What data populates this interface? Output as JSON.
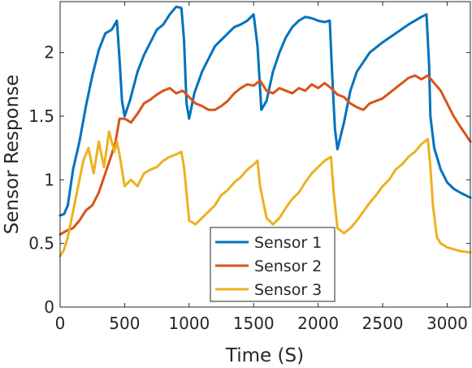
{
  "chart_data": {
    "type": "line",
    "xlabel": "Time (S)",
    "ylabel": "Sensor Response",
    "xlim": [
      0,
      3180
    ],
    "ylim": [
      0,
      2.4
    ],
    "x_ticks": [
      0,
      500,
      1000,
      1500,
      2000,
      2500,
      3000
    ],
    "y_ticks": [
      0,
      0.5,
      1,
      1.5,
      2
    ],
    "x_tick_labels": [
      "0",
      "500",
      "1000",
      "1500",
      "2000",
      "2500",
      "3000"
    ],
    "y_tick_labels": [
      "0",
      "0.5",
      "1",
      "1.5",
      "2"
    ],
    "grid": false,
    "legend_position": "bottom-center",
    "series": [
      {
        "name": "Sensor 1",
        "color": "#0072BD",
        "x": [
          0,
          30,
          60,
          100,
          150,
          200,
          250,
          300,
          350,
          400,
          440,
          460,
          480,
          500,
          540,
          600,
          650,
          700,
          750,
          800,
          850,
          900,
          940,
          960,
          980,
          1000,
          1040,
          1100,
          1150,
          1200,
          1250,
          1300,
          1350,
          1400,
          1450,
          1500,
          1530,
          1560,
          1600,
          1650,
          1700,
          1750,
          1800,
          1850,
          1900,
          1950,
          2000,
          2050,
          2090,
          2110,
          2130,
          2150,
          2200,
          2250,
          2300,
          2400,
          2500,
          2600,
          2700,
          2800,
          2840,
          2860,
          2870,
          2900,
          2950,
          3000,
          3050,
          3100,
          3180
        ],
        "y": [
          0.72,
          0.73,
          0.8,
          1.08,
          1.3,
          1.58,
          1.82,
          2.02,
          2.15,
          2.18,
          2.25,
          1.95,
          1.62,
          1.5,
          1.62,
          1.85,
          1.98,
          2.08,
          2.18,
          2.22,
          2.3,
          2.36,
          2.35,
          2.1,
          1.6,
          1.48,
          1.68,
          1.85,
          1.95,
          2.05,
          2.1,
          2.15,
          2.2,
          2.22,
          2.25,
          2.3,
          2.05,
          1.55,
          1.62,
          1.85,
          2.0,
          2.12,
          2.2,
          2.25,
          2.28,
          2.27,
          2.25,
          2.24,
          2.25,
          1.8,
          1.4,
          1.24,
          1.45,
          1.7,
          1.85,
          2.0,
          2.08,
          2.15,
          2.22,
          2.28,
          2.3,
          1.9,
          1.5,
          1.25,
          1.08,
          0.98,
          0.93,
          0.9,
          0.86
        ]
      },
      {
        "name": "Sensor 2",
        "color": "#D95319",
        "x": [
          0,
          50,
          100,
          150,
          200,
          250,
          300,
          350,
          400,
          430,
          460,
          500,
          550,
          600,
          650,
          700,
          750,
          800,
          850,
          900,
          950,
          1000,
          1050,
          1100,
          1150,
          1200,
          1250,
          1300,
          1350,
          1400,
          1450,
          1500,
          1550,
          1600,
          1650,
          1700,
          1750,
          1800,
          1850,
          1900,
          1950,
          2000,
          2050,
          2100,
          2150,
          2200,
          2250,
          2300,
          2350,
          2400,
          2450,
          2500,
          2550,
          2600,
          2650,
          2700,
          2750,
          2800,
          2850,
          2900,
          2950,
          3000,
          3050,
          3100,
          3180
        ],
        "y": [
          0.57,
          0.6,
          0.62,
          0.68,
          0.76,
          0.8,
          0.9,
          1.05,
          1.2,
          1.3,
          1.48,
          1.48,
          1.45,
          1.52,
          1.6,
          1.63,
          1.67,
          1.7,
          1.72,
          1.68,
          1.7,
          1.65,
          1.6,
          1.58,
          1.55,
          1.55,
          1.58,
          1.62,
          1.68,
          1.72,
          1.75,
          1.74,
          1.78,
          1.7,
          1.68,
          1.72,
          1.7,
          1.68,
          1.72,
          1.7,
          1.75,
          1.72,
          1.76,
          1.72,
          1.67,
          1.65,
          1.6,
          1.57,
          1.55,
          1.6,
          1.62,
          1.64,
          1.68,
          1.72,
          1.76,
          1.8,
          1.82,
          1.79,
          1.82,
          1.76,
          1.7,
          1.6,
          1.5,
          1.42,
          1.3
        ]
      },
      {
        "name": "Sensor 3",
        "color": "#EDB120",
        "x": [
          0,
          30,
          60,
          100,
          140,
          180,
          220,
          260,
          300,
          340,
          380,
          420,
          440,
          460,
          500,
          550,
          600,
          650,
          700,
          750,
          800,
          850,
          900,
          940,
          960,
          980,
          1000,
          1050,
          1100,
          1150,
          1200,
          1250,
          1300,
          1350,
          1400,
          1450,
          1500,
          1530,
          1550,
          1600,
          1650,
          1700,
          1750,
          1800,
          1850,
          1900,
          1950,
          2000,
          2050,
          2100,
          2120,
          2150,
          2200,
          2250,
          2300,
          2350,
          2400,
          2450,
          2500,
          2550,
          2600,
          2650,
          2700,
          2750,
          2800,
          2850,
          2870,
          2890,
          2920,
          2950,
          3000,
          3100,
          3180
        ],
        "y": [
          0.4,
          0.45,
          0.55,
          0.75,
          0.95,
          1.15,
          1.25,
          1.05,
          1.3,
          1.1,
          1.38,
          1.22,
          1.3,
          1.2,
          0.95,
          1.0,
          0.95,
          1.05,
          1.08,
          1.1,
          1.15,
          1.18,
          1.2,
          1.22,
          1.1,
          0.9,
          0.68,
          0.65,
          0.7,
          0.75,
          0.8,
          0.88,
          0.92,
          0.98,
          1.02,
          1.08,
          1.12,
          1.15,
          0.95,
          0.7,
          0.65,
          0.7,
          0.78,
          0.85,
          0.9,
          0.98,
          1.05,
          1.1,
          1.15,
          1.18,
          0.9,
          0.62,
          0.58,
          0.62,
          0.68,
          0.75,
          0.82,
          0.88,
          0.95,
          1.0,
          1.08,
          1.12,
          1.18,
          1.22,
          1.28,
          1.32,
          1.1,
          0.8,
          0.55,
          0.5,
          0.47,
          0.44,
          0.43
        ]
      }
    ]
  }
}
